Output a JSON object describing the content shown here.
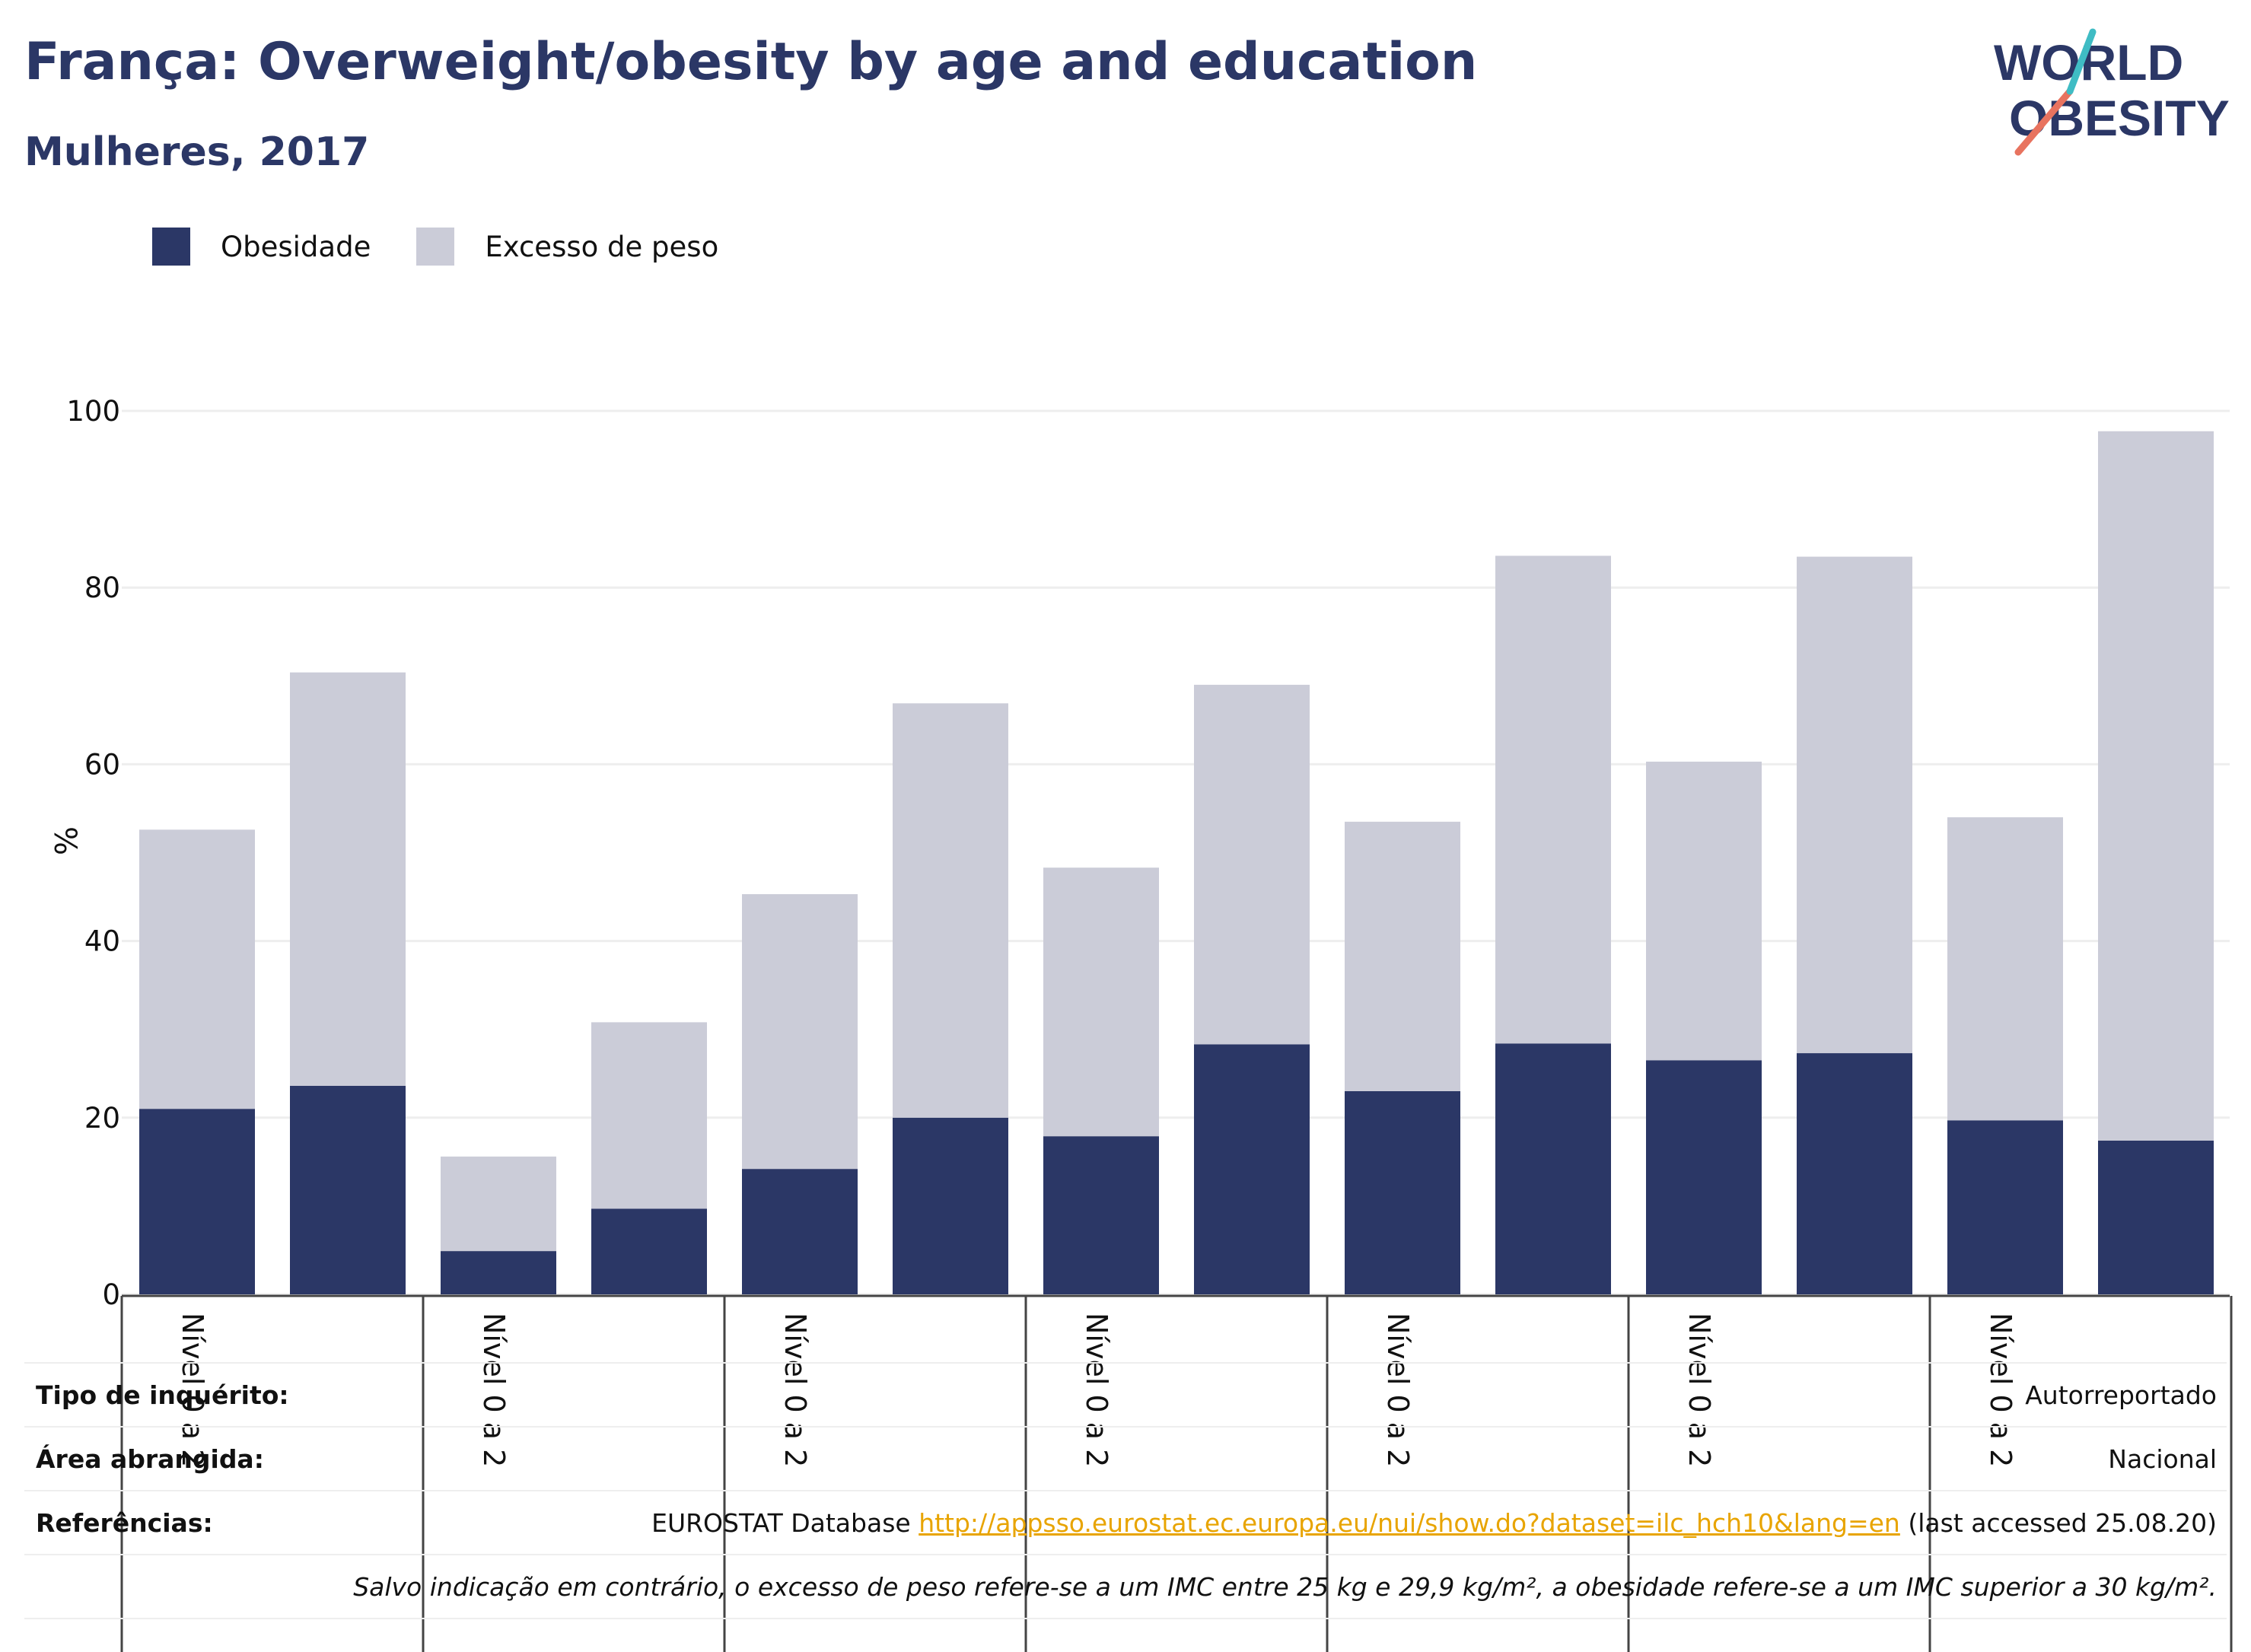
{
  "header": {
    "title": "França: Overweight/obesity by age and education",
    "subtitle": "Mulheres, 2017"
  },
  "logo": {
    "line1": "WORLD",
    "line2": "OBESITY"
  },
  "legend": {
    "items": [
      {
        "label": "Obesidade",
        "color": "#2b3766"
      },
      {
        "label": "Excesso de peso",
        "color": "#cbccd8"
      }
    ]
  },
  "chart_data": {
    "type": "bar",
    "stacked": true,
    "ylabel": "%",
    "ylim": [
      0,
      100
    ],
    "yticks": [
      0,
      20,
      40,
      60,
      80,
      100
    ],
    "grid": true,
    "legend_position": "top-left",
    "categories": [
      "Nível 0 a 2",
      "",
      "Nível 0 a 2",
      "",
      "Nível 0 a 2",
      "",
      "Nível 0 a 2",
      "",
      "Nível 0 a 2",
      "",
      "Nível 0 a 2",
      "",
      "Nível 0 a 2",
      ""
    ],
    "group_labels": [
      "Nível 0 a 2",
      "Nível 0 a 2",
      "Nível 0 a 2",
      "Nível 0 a 2",
      "Nível 0 a 2",
      "Nível 0 a 2",
      "Nível 0 a 2"
    ],
    "series": [
      {
        "name": "Obesidade",
        "color": "#2b3766",
        "values": [
          21.0,
          23.6,
          4.9,
          9.7,
          14.2,
          20.0,
          17.9,
          28.3,
          23.0,
          28.4,
          26.5,
          27.3,
          19.7,
          17.4
        ]
      },
      {
        "name": "Excesso de peso",
        "color": "#cbccd8",
        "values": [
          31.6,
          46.8,
          10.7,
          21.1,
          31.1,
          46.9,
          30.4,
          40.7,
          30.5,
          55.2,
          33.8,
          56.2,
          34.3,
          80.3
        ]
      }
    ]
  },
  "footer": {
    "survey_label": "Tipo de inquérito:",
    "survey_value": "Autorreportado",
    "area_label": "Área abrangida:",
    "area_value": "Nacional",
    "refs_label": "Referências:",
    "refs_prefix": "EUROSTAT Database ",
    "refs_link": "http://appsso.eurostat.ec.europa.eu/nui/show.do?dataset=ilc_hch10&lang=en",
    "refs_suffix": " (last accessed 25.08.20)",
    "note": "Salvo indicação em contrário, o excesso de peso refere-se a um IMC entre 25 kg e 29,9 kg/m², a obesidade refere-se a um IMC superior a 30 kg/m²."
  }
}
